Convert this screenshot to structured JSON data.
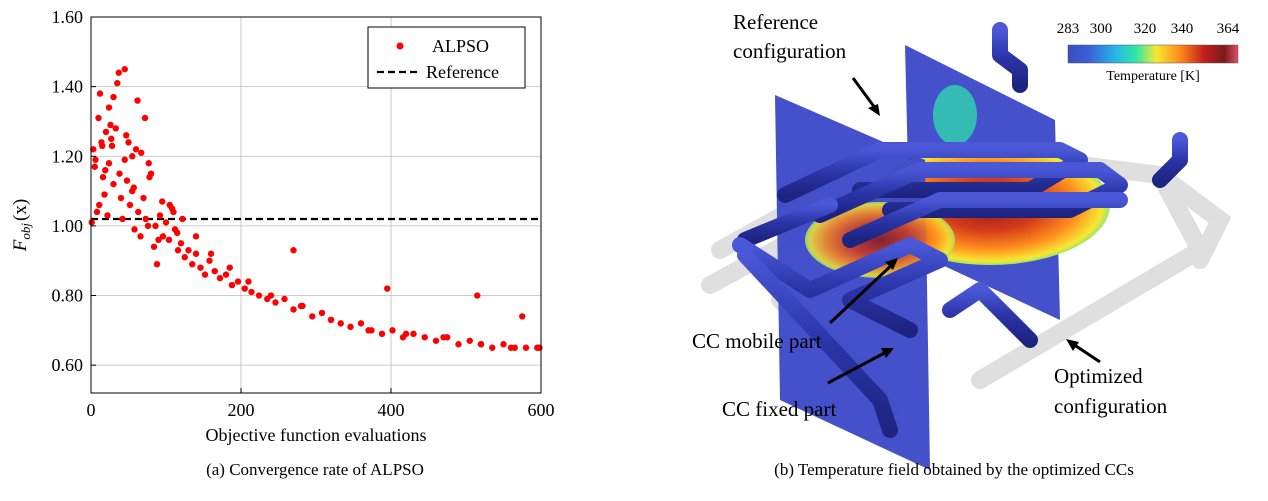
{
  "figure_a": {
    "caption": "(a) Convergence rate of ALPSO",
    "ylabel": "F",
    "ylabel_sub": "obj",
    "ylabel_arg": "(x)",
    "xlabel": "Objective function evaluations",
    "legend": {
      "series": "ALPSO",
      "reference": "Reference"
    }
  },
  "chart_data": {
    "type": "scatter",
    "xlabel": "Objective function evaluations",
    "ylabel": "F_obj(x)",
    "xlim": [
      0,
      600
    ],
    "ylim": [
      0.52,
      1.6
    ],
    "xticks": [
      "0",
      "200",
      "400",
      "600"
    ],
    "yticks": [
      "0.60",
      "0.80",
      "1.00",
      "1.20",
      "1.40",
      "1.60"
    ],
    "xtick_values": [
      0,
      200,
      400,
      600
    ],
    "ytick_values": [
      0.6,
      0.8,
      1.0,
      1.2,
      1.4,
      1.6
    ],
    "grid": true,
    "legend_position": "top-right",
    "series": [
      {
        "name": "ALPSO",
        "color": "#ff0000",
        "x": [
          1,
          3,
          5,
          8,
          10,
          12,
          14,
          16,
          18,
          20,
          22,
          24,
          26,
          28,
          30,
          33,
          35,
          38,
          40,
          42,
          45,
          48,
          50,
          52,
          55,
          58,
          60,
          63,
          66,
          70,
          73,
          76,
          80,
          84,
          88,
          92,
          96,
          100,
          104,
          108,
          112,
          116,
          120,
          125,
          130,
          135,
          140,
          146,
          152,
          158,
          165,
          172,
          180,
          188,
          196,
          205,
          214,
          224,
          235,
          246,
          258,
          270,
          282,
          295,
          308,
          320,
          333,
          346,
          360,
          374,
          388,
          402,
          416,
          430,
          445,
          460,
          475,
          490,
          505,
          520,
          535,
          550,
          565,
          580,
          595,
          24,
          55,
          72,
          78,
          62,
          45,
          30,
          90,
          105,
          110,
          270,
          395,
          515,
          575,
          15,
          6,
          11,
          19,
          27,
          37,
          47,
          57,
          67,
          77,
          86,
          95,
          115,
          122,
          140,
          160,
          185,
          210,
          240,
          280,
          320,
          370,
          420,
          470,
          520,
          560,
          598
        ],
        "y": [
          1.01,
          1.22,
          1.17,
          1.04,
          1.31,
          1.38,
          1.24,
          1.14,
          1.09,
          1.27,
          1.03,
          1.18,
          1.29,
          1.23,
          1.12,
          1.28,
          1.41,
          1.15,
          1.08,
          1.02,
          1.19,
          1.13,
          1.24,
          1.06,
          1.1,
          0.99,
          1.22,
          1.04,
          0.97,
          1.08,
          1.02,
          1.0,
          1.15,
          0.94,
          0.89,
          1.03,
          0.97,
          1.01,
          0.96,
          1.05,
          0.99,
          0.93,
          0.95,
          0.91,
          0.93,
          0.89,
          0.92,
          0.88,
          0.86,
          0.9,
          0.87,
          0.85,
          0.86,
          0.83,
          0.84,
          0.82,
          0.81,
          0.8,
          0.79,
          0.78,
          0.79,
          0.76,
          0.77,
          0.74,
          0.75,
          0.73,
          0.72,
          0.71,
          0.72,
          0.7,
          0.69,
          0.7,
          0.68,
          0.69,
          0.68,
          0.67,
          0.68,
          0.66,
          0.67,
          0.66,
          0.65,
          0.66,
          0.65,
          0.65,
          0.65,
          1.34,
          1.2,
          1.31,
          1.14,
          1.36,
          1.45,
          1.37,
          0.96,
          1.06,
          1.04,
          0.93,
          0.82,
          0.8,
          0.74,
          1.23,
          1.19,
          1.06,
          1.16,
          1.25,
          1.44,
          1.26,
          1.11,
          1.21,
          1.18,
          1.0,
          1.07,
          0.98,
          1.02,
          0.97,
          0.92,
          0.88,
          0.84,
          0.8,
          0.77,
          0.73,
          0.7,
          0.69,
          0.68,
          0.66,
          0.65,
          0.65
        ]
      },
      {
        "name": "Reference",
        "type": "dashed-line",
        "color": "#000000",
        "y": 1.0
      }
    ]
  },
  "figure_b": {
    "caption": "(b) Temperature field obtained by the optimized CCs",
    "colorbar": {
      "title": "Temperature [K]",
      "ticks": [
        "283",
        "300",
        "320",
        "340",
        "364"
      ],
      "colors": [
        "#3b4cc0",
        "#3a5fd8",
        "#28b6e6",
        "#2ee8a8",
        "#f7e733",
        "#ff8a1c",
        "#c0201c",
        "#7a1a1a",
        "#e0506a"
      ]
    },
    "labels": {
      "reference_line1": "Reference",
      "reference_line2": "configuration",
      "cc_mobile": "CC mobile part",
      "cc_fixed": "CC fixed part",
      "optimized_line1": "Optimized",
      "optimized_line2": "configuration"
    }
  }
}
